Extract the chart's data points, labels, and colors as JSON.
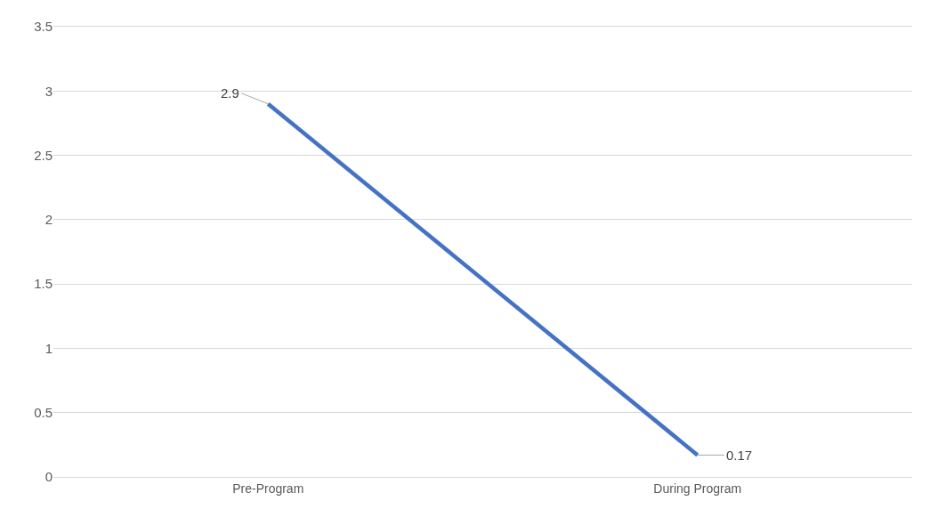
{
  "chart_data": {
    "type": "line",
    "categories": [
      "Pre-Program",
      "During Program"
    ],
    "series": [
      {
        "color": "#4472c4",
        "values": [
          2.9,
          0.17
        ]
      }
    ],
    "ylim": [
      0,
      3.5
    ],
    "yticks": [
      0,
      0.5,
      1,
      1.5,
      2,
      2.5,
      3,
      3.5
    ],
    "grid": "y",
    "marker": "none",
    "line_style": "solid",
    "data_labels": true
  }
}
